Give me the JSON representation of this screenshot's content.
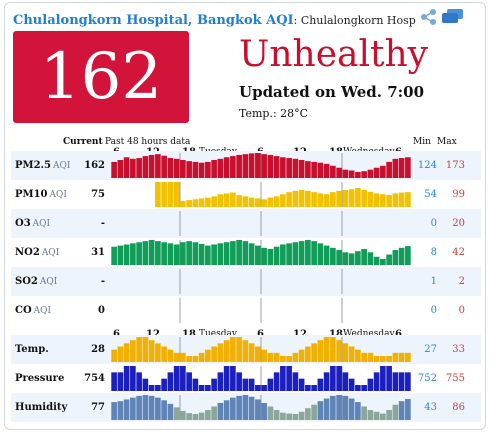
{
  "header": {
    "title": "Chulalongkorn Hospital, Bangkok AQI",
    "subtitle": ": Chulalongkorn Hosp"
  },
  "icons": [
    "share-icon",
    "chat-icon"
  ],
  "aqi": {
    "value": "162",
    "status": "Unhealthy",
    "updated": "Updated on Wed. 7:00",
    "temp": "Temp.: 28°C",
    "color": "#d2143a"
  },
  "table": {
    "current_header": "Current",
    "past_header": "Past 48 hours data",
    "min_header": "Min",
    "max_header": "Max",
    "ticks": [
      "6",
      "12",
      "18",
      "Tuesday",
      "6",
      "12",
      "18",
      "Wednesday",
      "6"
    ],
    "rows": [
      {
        "name": "PM2.5",
        "unit": "AQI",
        "current": "162",
        "min": "124",
        "max": "173",
        "values": [
          150,
          155,
          162,
          158,
          160,
          165,
          168,
          170,
          166,
          160,
          158,
          155,
          152,
          150,
          148,
          150,
          155,
          158,
          162,
          165,
          168,
          170,
          172,
          173,
          170,
          168,
          165,
          162,
          160,
          158,
          155,
          152,
          150,
          148,
          145,
          140,
          135,
          130,
          128,
          124,
          126,
          130,
          135,
          140,
          150,
          158,
          160,
          162
        ]
      },
      {
        "name": "PM10",
        "unit": "AQI",
        "current": "75",
        "min": "54",
        "max": "99",
        "values": [
          null,
          null,
          null,
          null,
          null,
          null,
          null,
          99,
          99,
          99,
          99,
          54,
          56,
          58,
          60,
          62,
          65,
          70,
          72,
          74,
          68,
          65,
          62,
          60,
          58,
          62,
          65,
          70,
          75,
          78,
          80,
          78,
          75,
          72,
          70,
          75,
          78,
          80,
          82,
          85,
          80,
          76,
          72,
          70,
          68,
          72,
          74,
          75
        ]
      },
      {
        "name": "O3",
        "unit": "AQI",
        "current": "-",
        "min": "0",
        "max": "20",
        "values": []
      },
      {
        "name": "NO2",
        "unit": "AQI",
        "current": "31",
        "min": "8",
        "max": "42",
        "values": [
          30,
          32,
          34,
          36,
          38,
          40,
          42,
          40,
          38,
          36,
          34,
          38,
          40,
          38,
          35,
          32,
          34,
          36,
          38,
          40,
          42,
          40,
          36,
          32,
          28,
          26,
          30,
          34,
          36,
          38,
          40,
          42,
          40,
          36,
          32,
          28,
          24,
          20,
          18,
          22,
          26,
          20,
          12,
          8,
          16,
          24,
          28,
          31
        ]
      },
      {
        "name": "SO2",
        "unit": "AQI",
        "current": "-",
        "min": "1",
        "max": "2",
        "values": []
      },
      {
        "name": "CO",
        "unit": "AQI",
        "current": "0",
        "min": "0",
        "max": "0",
        "values": []
      },
      {
        "name": "Temp.",
        "unit": "",
        "current": "28",
        "min": "27",
        "max": "33",
        "values": [
          29,
          30,
          31,
          32,
          33,
          33,
          32,
          31,
          30,
          29,
          28,
          28,
          27,
          27,
          28,
          29,
          30,
          31,
          32,
          33,
          33,
          32,
          31,
          30,
          29,
          28,
          28,
          27,
          27,
          28,
          29,
          30,
          31,
          32,
          33,
          33,
          32,
          31,
          30,
          29,
          28,
          28,
          27,
          27,
          27,
          28,
          28,
          28
        ]
      },
      {
        "name": "Pressure",
        "unit": "",
        "current": "754",
        "min": "752",
        "max": "755",
        "values": [
          754,
          754,
          755,
          755,
          754,
          753,
          752,
          752,
          753,
          754,
          755,
          755,
          754,
          753,
          752,
          752,
          753,
          754,
          755,
          755,
          754,
          753,
          753,
          752,
          752,
          753,
          754,
          755,
          755,
          754,
          753,
          752,
          752,
          753,
          754,
          755,
          755,
          754,
          753,
          752,
          752,
          753,
          754,
          755,
          755,
          754,
          754,
          754
        ]
      },
      {
        "name": "Humidity",
        "unit": "",
        "current": "77",
        "min": "43",
        "max": "86",
        "values": [
          70,
          72,
          76,
          80,
          84,
          86,
          84,
          80,
          74,
          66,
          58,
          50,
          45,
          43,
          46,
          52,
          60,
          68,
          74,
          80,
          84,
          86,
          82,
          76,
          68,
          60,
          52,
          46,
          44,
          43,
          48,
          56,
          64,
          72,
          78,
          84,
          86,
          84,
          78,
          70,
          60,
          52,
          48,
          44,
          52,
          64,
          72,
          77
        ]
      }
    ]
  }
}
